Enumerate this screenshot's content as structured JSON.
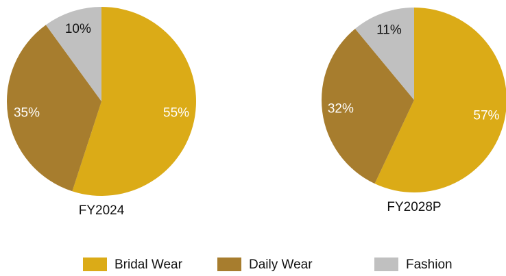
{
  "chart_data": [
    {
      "type": "pie",
      "title": "FY2024",
      "values": [
        55,
        35,
        10
      ],
      "value_labels": [
        "55%",
        "35%",
        "10%"
      ]
    },
    {
      "type": "pie",
      "title": "FY2028P",
      "values": [
        57,
        32,
        11
      ],
      "value_labels": [
        "57%",
        "32%",
        "11%"
      ]
    }
  ],
  "legend": {
    "categories": [
      "Bridal Wear",
      "Daily Wear",
      "Fashion"
    ],
    "colors": [
      "#dbab17",
      "#a77d2e",
      "#c0c0c0"
    ],
    "position": "bottom"
  }
}
